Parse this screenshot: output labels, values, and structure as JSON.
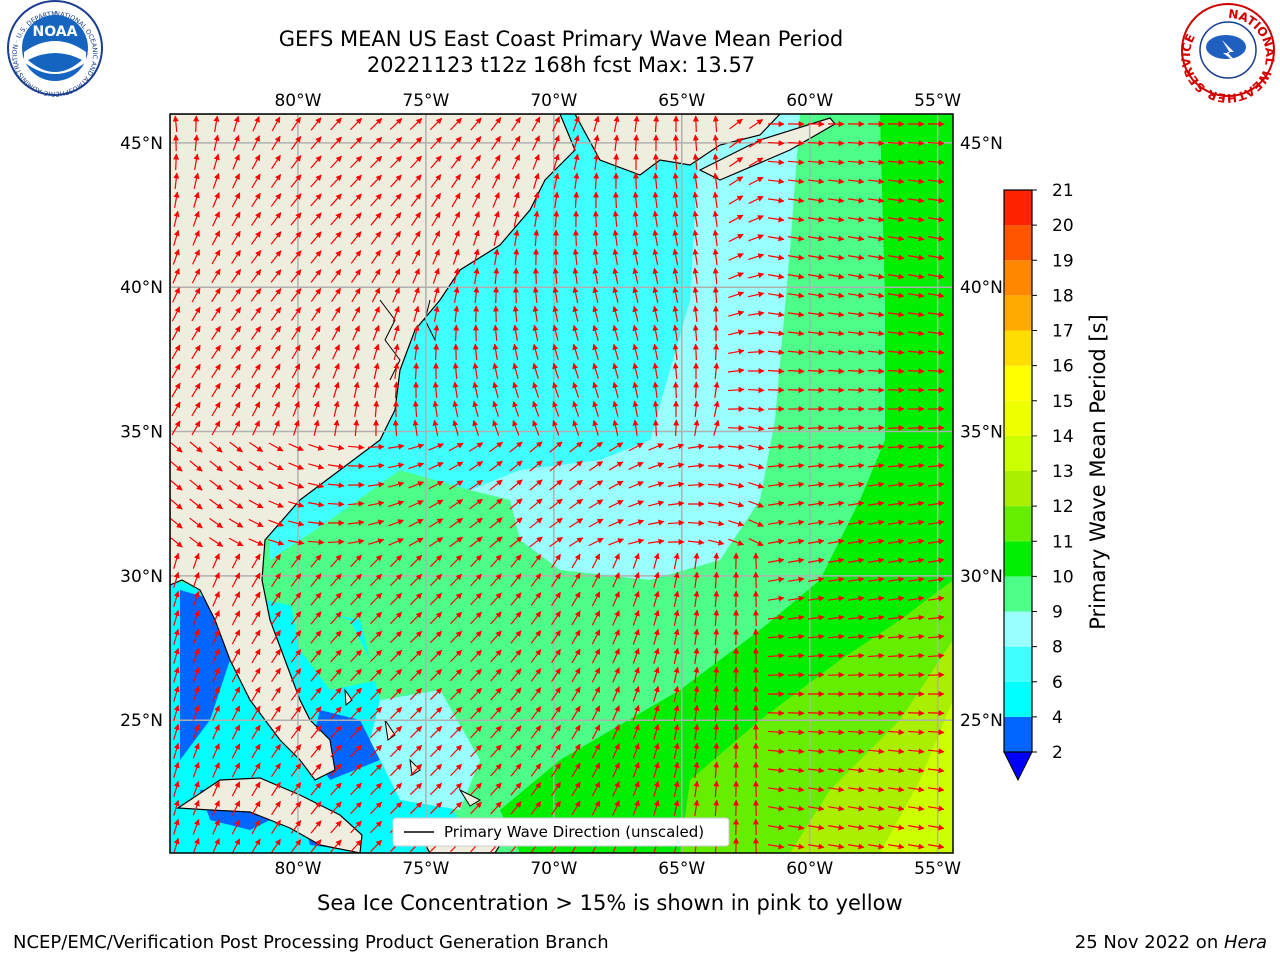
{
  "header": {
    "title_line1": "GEFS MEAN US East Coast Primary Wave Mean Period",
    "title_line2": "20221123 t12z 168h fcst   Max: 13.57"
  },
  "logos": {
    "left": {
      "name": "NOAA",
      "ring_text": "NATIONAL OCEANIC AND ATMOSPHERIC ADMINISTRATION · U.S. DEPARTMENT OF COMMERCE ·"
    },
    "right": {
      "name": "NATIONAL WEATHER SERVICE",
      "ring_text": "NATIONAL WEATHER SERVICE"
    }
  },
  "map": {
    "lon_labels": [
      "80°W",
      "75°W",
      "70°W",
      "65°W",
      "60°W",
      "55°W"
    ],
    "lon_values": [
      -80,
      -75,
      -70,
      -65,
      -60,
      -55
    ],
    "lat_labels": [
      "45°N",
      "40°N",
      "35°N",
      "30°N",
      "25°N"
    ],
    "lat_values": [
      45,
      40,
      35,
      30,
      25
    ],
    "extent": {
      "lon_min": -85,
      "lon_max": -54.4,
      "lat_min": 20.4,
      "lat_max": 46
    },
    "legend_label": "Primary Wave Direction (unscaled)",
    "arrow_color": "#ff0000",
    "land_color": "#efedde"
  },
  "colorbar": {
    "label": "Primary Wave Mean Period [s]",
    "ticks": [
      "2",
      "4",
      "6",
      "8",
      "9",
      "10",
      "11",
      "12",
      "13",
      "14",
      "15",
      "16",
      "17",
      "18",
      "19",
      "20",
      "21"
    ],
    "colors": [
      "#0066ff",
      "#00ffff",
      "#40ffff",
      "#99ffff",
      "#4dff88",
      "#00ee00",
      "#66ee00",
      "#aaee00",
      "#ccff00",
      "#eeff00",
      "#ffff00",
      "#ffdd00",
      "#ffaa00",
      "#ff8800",
      "#ff5500",
      "#ff2200"
    ],
    "extend_color": "#0000ff"
  },
  "footer": {
    "note": "Sea Ice Concentration > 15% is shown in pink to yellow",
    "org": "NCEP/EMC/Verification Post Processing Product Generation Branch",
    "date_prefix": "25 Nov 2022 on ",
    "machine": "Hera"
  }
}
